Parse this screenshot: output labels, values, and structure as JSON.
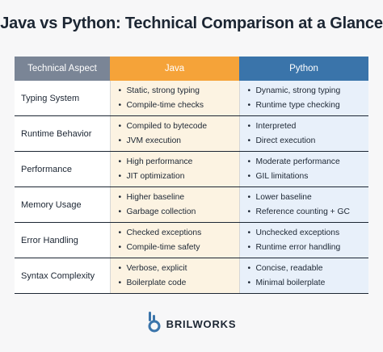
{
  "title": "Java vs Python: Technical Comparison at a Glance",
  "headers": [
    "Technical Aspect",
    "Java",
    "Python"
  ],
  "rows": [
    {
      "aspect": "Typing System",
      "java": [
        "Static, strong typing",
        "Compile-time checks"
      ],
      "python": [
        "Dynamic, strong typing",
        "Runtime type checking"
      ]
    },
    {
      "aspect": "Runtime Behavior",
      "java": [
        "Compiled to bytecode",
        "JVM execution"
      ],
      "python": [
        "Interpreted",
        "Direct execution"
      ]
    },
    {
      "aspect": "Performance",
      "java": [
        "High performance",
        "JIT optimization"
      ],
      "python": [
        "Moderate performance",
        "GIL limitations"
      ]
    },
    {
      "aspect": "Memory Usage",
      "java": [
        "Higher baseline",
        "Garbage collection"
      ],
      "python": [
        "Lower baseline",
        "Reference counting + GC"
      ]
    },
    {
      "aspect": "Error Handling",
      "java": [
        "Checked exceptions",
        "Compile-time safety"
      ],
      "python": [
        "Unchecked exceptions",
        "Runtime error handling"
      ]
    },
    {
      "aspect": "Syntax Complexity",
      "java": [
        "Verbose, explicit",
        "Boilerplate code"
      ],
      "python": [
        "Concise, readable",
        "Minimal boilerplate"
      ]
    }
  ],
  "brand": {
    "name": "BRILWORKS",
    "icon": "brilworks-logo-icon"
  },
  "colors": {
    "java_header": "#f5a339",
    "python_header": "#3a74aa",
    "aspect_header": "#7a8596",
    "java_cell": "#fcf3e2",
    "python_cell": "#e8f0fa"
  }
}
